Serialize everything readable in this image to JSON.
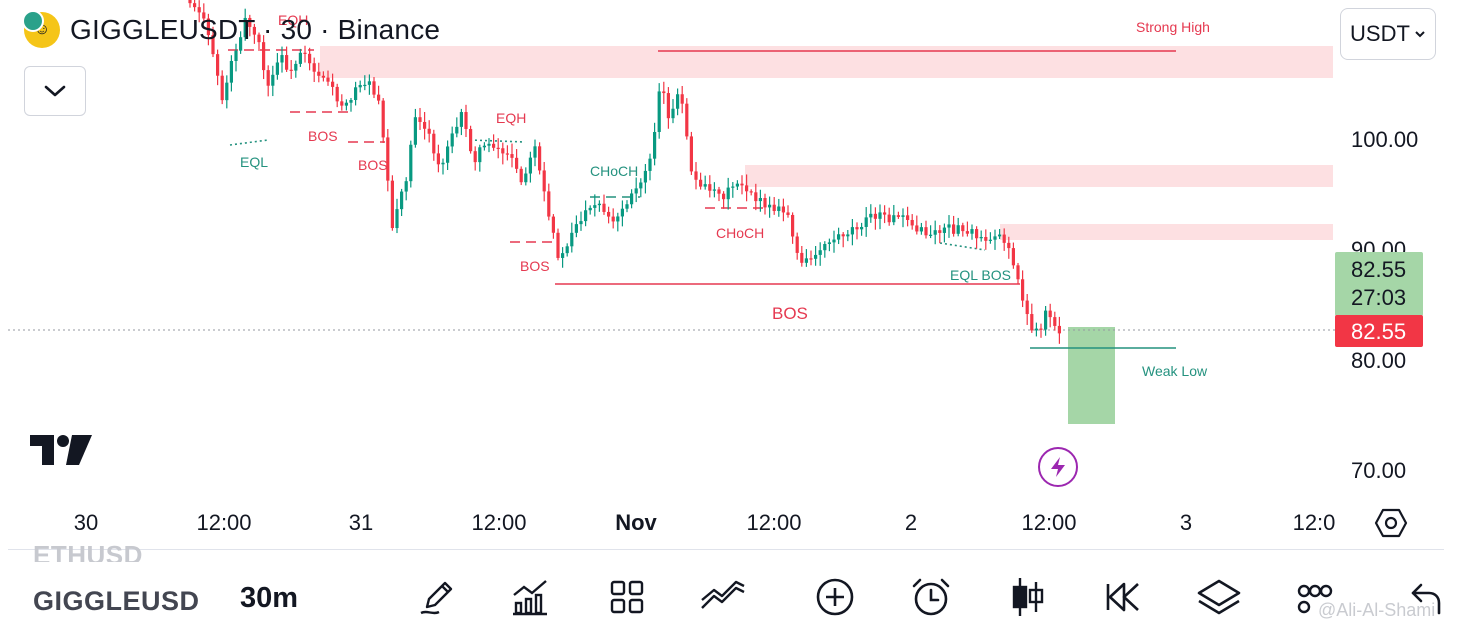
{
  "header": {
    "symbol_line": "GIGGLEUSDT · 30 · Binance",
    "currency_selector": "USDT"
  },
  "price_axis": {
    "labels": [
      "100.00",
      "90.00",
      "80.00",
      "70.00"
    ],
    "countdown_tag": {
      "price": "82.55",
      "timer": "27:03",
      "color": "#a5d6a7"
    },
    "last_price_tag": {
      "price": "82.55",
      "color": "#f23645"
    }
  },
  "time_axis": {
    "labels": [
      "30",
      "12:00",
      "31",
      "12:00",
      "Nov",
      "12:00",
      "2",
      "12:00",
      "3",
      "12:0"
    ]
  },
  "annotations": {
    "strong_high": "Strong High",
    "weak_low": "Weak Low",
    "eqh_1": "EQH",
    "eqh_2": "EQH",
    "eql_1": "EQL",
    "bos_1": "BOS",
    "bos_2": "BOS",
    "bos_3": "BOS",
    "bos_main": "BOS",
    "choch_1": "CHoCH",
    "choch_2": "CHoCH",
    "eql_bos": "EQL BOS"
  },
  "colors": {
    "up": "#089981",
    "down": "#f23645",
    "supply_zone": "#fde0e2",
    "target_zone": "#a5d6a7",
    "label_red": "#e53950",
    "label_green": "#24927f"
  },
  "bottom_bar": {
    "previous_symbol": "ETHUSD",
    "symbol": "GIGGLEUSD",
    "interval": "30m",
    "tools": [
      "pencil-icon",
      "indicators-icon",
      "grid-icon",
      "compare-icon",
      "add-icon",
      "alarm-icon",
      "candles-icon",
      "replay-icon",
      "layers-icon",
      "more-icon",
      "back-icon"
    ]
  },
  "watermark": "@Ali-Al-Shami"
}
